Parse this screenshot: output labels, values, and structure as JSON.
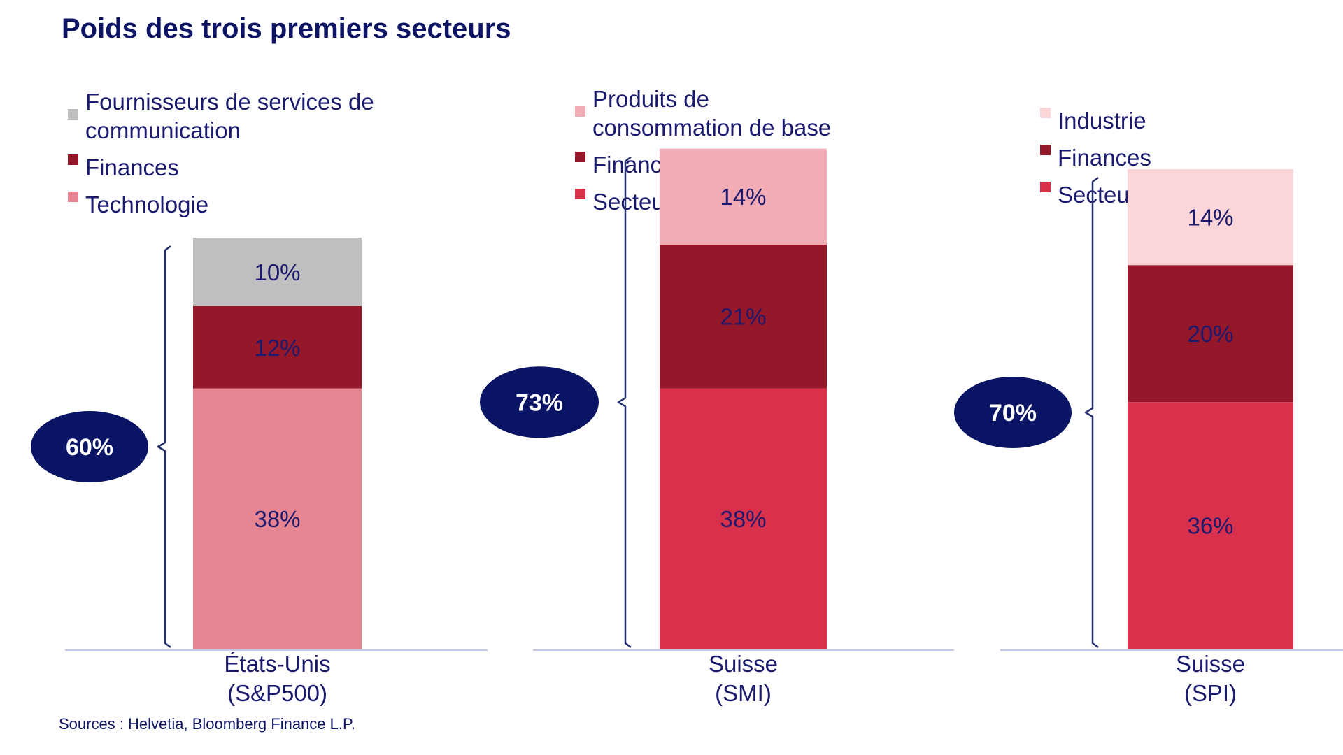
{
  "chart_data": {
    "type": "bar",
    "title": "Poids des trois premiers secteurs",
    "source": "Sources : Helvetia, Bloomberg Finance L.P.",
    "ylim": [
      0,
      100
    ],
    "colors": {
      "communication": "#bfbfbf",
      "finances": "#95172a",
      "technologie": "#e88592",
      "consommation": "#f2acb6",
      "sante": "#d9304b",
      "industrie": "#fbd5d7",
      "total_bubble": "#0a1464",
      "axis": "#c3c7ec",
      "bracket": "#25306e"
    },
    "panels": [
      {
        "category_line1": "États-Unis",
        "category_line2": "(S&P500)",
        "total_label": "60%",
        "legend": [
          {
            "lines": [
              "Fournisseurs de services de",
              "communication"
            ],
            "color_key": "communication"
          },
          {
            "lines": [
              "Finances"
            ],
            "color_key": "finances"
          },
          {
            "lines": [
              "Technologie"
            ],
            "color_key": "technologie"
          }
        ],
        "segments": [
          {
            "name": "Technologie",
            "value": 38,
            "label": "38%",
            "color_key": "technologie"
          },
          {
            "name": "Finances",
            "value": 12,
            "label": "12%",
            "color_key": "finances"
          },
          {
            "name": "Fournisseurs de services de communication",
            "value": 10,
            "label": "10%",
            "color_key": "communication"
          }
        ]
      },
      {
        "category_line1": "Suisse",
        "category_line2": "(SMI)",
        "total_label": "73%",
        "legend": [
          {
            "lines": [
              "Produits de",
              "consommation de base"
            ],
            "color_key": "consommation"
          },
          {
            "lines": [
              "Finances"
            ],
            "color_key": "finances"
          },
          {
            "lines": [
              "Secteur de la santé"
            ],
            "color_key": "sante"
          }
        ],
        "segments": [
          {
            "name": "Secteur de la santé",
            "value": 38,
            "label": "38%",
            "color_key": "sante"
          },
          {
            "name": "Finances",
            "value": 21,
            "label": "21%",
            "color_key": "finances"
          },
          {
            "name": "Produits de consommation de base",
            "value": 14,
            "label": "14%",
            "color_key": "consommation"
          }
        ]
      },
      {
        "category_line1": "Suisse",
        "category_line2": "(SPI)",
        "total_label": "70%",
        "legend": [
          {
            "lines": [
              "Industrie"
            ],
            "color_key": "industrie"
          },
          {
            "lines": [
              "Finances"
            ],
            "color_key": "finances"
          },
          {
            "lines": [
              "Secteur de la santé"
            ],
            "color_key": "sante"
          }
        ],
        "segments": [
          {
            "name": "Secteur de la santé",
            "value": 36,
            "label": "36%",
            "color_key": "sante"
          },
          {
            "name": "Finances",
            "value": 20,
            "label": "20%",
            "color_key": "finances"
          },
          {
            "name": "Industrie",
            "value": 14,
            "label": "14%",
            "color_key": "industrie"
          }
        ]
      }
    ]
  }
}
